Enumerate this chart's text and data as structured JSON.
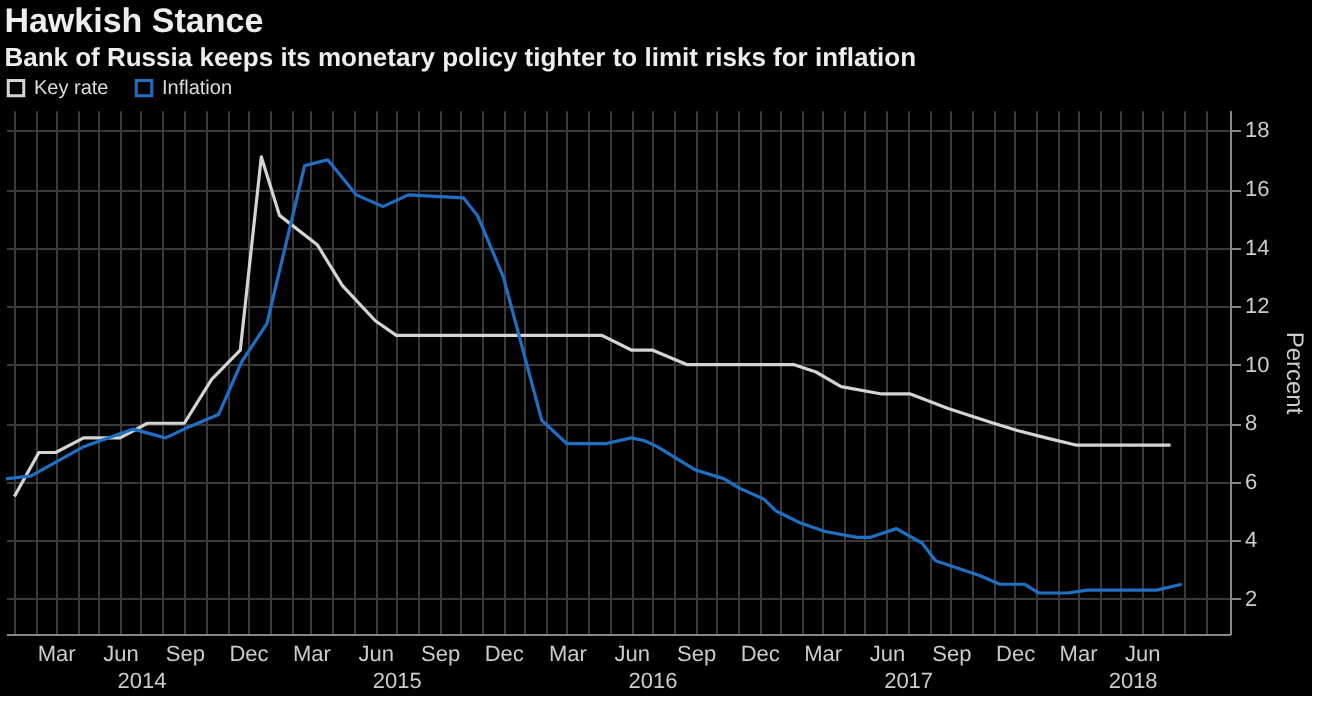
{
  "chart_data": {
    "type": "line",
    "title": "Hawkish Stance",
    "subtitle": "Bank of Russia keeps its monetary policy tighter to limit risks for inflation",
    "ylabel": "Percent",
    "series": [
      {
        "name": "Key rate",
        "color": "#d4d4d4",
        "x": [
          "2014-01-01",
          "2014-02-05",
          "2014-03-01",
          "2014-04-10",
          "2014-06-01",
          "2014-07-10",
          "2014-09-01",
          "2014-10-10",
          "2014-11-20",
          "2014-12-20",
          "2015-01-15",
          "2015-03-10",
          "2015-04-15",
          "2015-06-01",
          "2015-07-01",
          "2016-04-20",
          "2016-06-01",
          "2016-07-01",
          "2016-08-20",
          "2017-01-20",
          "2017-02-20",
          "2017-03-28",
          "2017-05-25",
          "2017-07-05",
          "2017-08-28",
          "2017-11-01",
          "2017-12-05",
          "2018-01-15",
          "2018-02-28",
          "2018-07-12"
        ],
        "values": [
          5.5,
          7,
          7,
          7.5,
          7.5,
          8,
          8,
          9.5,
          10.5,
          17.1,
          15.1,
          14.1,
          12.7,
          11.5,
          11,
          11,
          10.5,
          10.5,
          10,
          10,
          9.75,
          9.25,
          9,
          9,
          8.5,
          8,
          7.75,
          7.5,
          7.25,
          7.25
        ]
      },
      {
        "name": "Inflation",
        "color": "#1f6fc5",
        "x": [
          "2013-12-20",
          "2014-01-25",
          "2014-04-10",
          "2014-06-20",
          "2014-08-05",
          "2014-09-10",
          "2014-10-20",
          "2014-11-22",
          "2014-12-28",
          "2015-02-20",
          "2015-03-25",
          "2015-05-05",
          "2015-06-12",
          "2015-07-18",
          "2015-10-05",
          "2015-10-25",
          "2015-12-01",
          "2016-01-25",
          "2016-03-01",
          "2016-04-25",
          "2016-06-01",
          "2016-06-20",
          "2016-07-08",
          "2016-09-01",
          "2016-10-12",
          "2016-11-01",
          "2016-12-08",
          "2016-12-25",
          "2017-01-28",
          "2017-03-05",
          "2017-04-20",
          "2017-05-08",
          "2017-06-15",
          "2017-07-22",
          "2017-08-10",
          "2017-10-12",
          "2017-11-10",
          "2017-12-15",
          "2018-01-05",
          "2018-02-15",
          "2018-03-15",
          "2018-05-20",
          "2018-06-22",
          "2018-07-28"
        ],
        "values": [
          6.1,
          6.2,
          7.2,
          7.8,
          7.5,
          7.9,
          8.3,
          10.1,
          11.4,
          16.8,
          17,
          15.8,
          15.4,
          15.8,
          15.7,
          15.1,
          13,
          8.1,
          7.3,
          7.3,
          7.5,
          7.4,
          7.2,
          6.4,
          6.1,
          5.8,
          5.4,
          5,
          4.6,
          4.3,
          4.1,
          4.1,
          4.4,
          3.9,
          3.3,
          2.8,
          2.5,
          2.5,
          2.2,
          2.2,
          2.3,
          2.3,
          2.3,
          2.5
        ]
      }
    ],
    "xlim": [
      "2013-12-20",
      "2018-10-05"
    ],
    "xticks": [
      {
        "value": "2014-01-01",
        "label": null
      },
      {
        "value": "2014-02-01",
        "label": null
      },
      {
        "value": "2014-03-01",
        "label": "Mar"
      },
      {
        "value": "2014-04-01",
        "label": null
      },
      {
        "value": "2014-05-01",
        "label": null
      },
      {
        "value": "2014-06-01",
        "label": "Jun"
      },
      {
        "value": "2014-07-01",
        "label": null
      },
      {
        "value": "2014-08-01",
        "label": null
      },
      {
        "value": "2014-09-01",
        "label": "Sep"
      },
      {
        "value": "2014-10-01",
        "label": null
      },
      {
        "value": "2014-11-01",
        "label": null
      },
      {
        "value": "2014-12-01",
        "label": "Dec"
      },
      {
        "value": "2015-01-01",
        "label": null
      },
      {
        "value": "2015-02-01",
        "label": null
      },
      {
        "value": "2015-03-01",
        "label": "Mar"
      },
      {
        "value": "2015-04-01",
        "label": null
      },
      {
        "value": "2015-05-01",
        "label": null
      },
      {
        "value": "2015-06-01",
        "label": "Jun"
      },
      {
        "value": "2015-07-01",
        "label": null
      },
      {
        "value": "2015-08-01",
        "label": null
      },
      {
        "value": "2015-09-01",
        "label": "Sep"
      },
      {
        "value": "2015-10-01",
        "label": null
      },
      {
        "value": "2015-11-01",
        "label": null
      },
      {
        "value": "2015-12-01",
        "label": "Dec"
      },
      {
        "value": "2016-01-01",
        "label": null
      },
      {
        "value": "2016-02-01",
        "label": null
      },
      {
        "value": "2016-03-01",
        "label": "Mar"
      },
      {
        "value": "2016-04-01",
        "label": null
      },
      {
        "value": "2016-05-01",
        "label": null
      },
      {
        "value": "2016-06-01",
        "label": "Jun"
      },
      {
        "value": "2016-07-01",
        "label": null
      },
      {
        "value": "2016-08-01",
        "label": null
      },
      {
        "value": "2016-09-01",
        "label": "Sep"
      },
      {
        "value": "2016-10-01",
        "label": null
      },
      {
        "value": "2016-11-01",
        "label": null
      },
      {
        "value": "2016-12-01",
        "label": "Dec"
      },
      {
        "value": "2017-01-01",
        "label": null
      },
      {
        "value": "2017-02-01",
        "label": null
      },
      {
        "value": "2017-03-01",
        "label": "Mar"
      },
      {
        "value": "2017-04-01",
        "label": null
      },
      {
        "value": "2017-05-01",
        "label": null
      },
      {
        "value": "2017-06-01",
        "label": "Jun"
      },
      {
        "value": "2017-07-01",
        "label": null
      },
      {
        "value": "2017-08-01",
        "label": null
      },
      {
        "value": "2017-09-01",
        "label": "Sep"
      },
      {
        "value": "2017-10-01",
        "label": null
      },
      {
        "value": "2017-11-01",
        "label": null
      },
      {
        "value": "2017-12-01",
        "label": "Dec"
      },
      {
        "value": "2018-01-01",
        "label": null
      },
      {
        "value": "2018-02-01",
        "label": null
      },
      {
        "value": "2018-03-01",
        "label": "Mar"
      },
      {
        "value": "2018-04-01",
        "label": null
      },
      {
        "value": "2018-05-01",
        "label": null
      },
      {
        "value": "2018-06-01",
        "label": "Jun"
      },
      {
        "value": "2018-07-01",
        "label": null
      },
      {
        "value": "2018-08-01",
        "label": null
      },
      {
        "value": "2018-09-01",
        "label": null
      }
    ],
    "ylim": [
      0.8,
      18.7
    ],
    "yticks": [
      2,
      4,
      6,
      8,
      10,
      12,
      14,
      16,
      18
    ],
    "annotations": [
      "2014",
      "2015",
      "2016",
      "2017",
      "2018"
    ],
    "grid": true,
    "legend": "top left",
    "marker": "none",
    "line_style": "solid"
  }
}
